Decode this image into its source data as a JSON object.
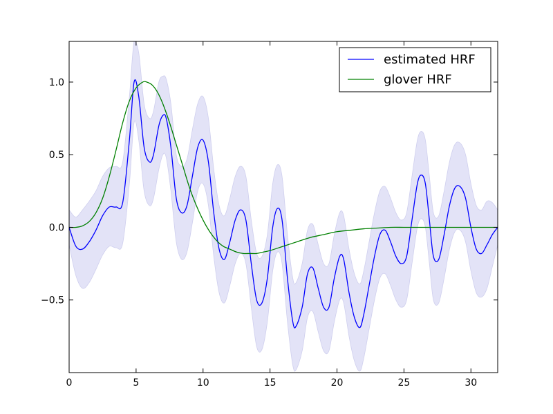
{
  "chart_data": {
    "type": "line",
    "xlim": [
      0,
      32
    ],
    "ylim": [
      -1.0,
      1.28
    ],
    "xticks": [
      0,
      5,
      10,
      15,
      20,
      25,
      30
    ],
    "xtick_labels": [
      "0",
      "5",
      "10",
      "15",
      "20",
      "25",
      "30"
    ],
    "yticks": [
      -0.5,
      0.0,
      0.5,
      1.0
    ],
    "ytick_labels": [
      "−0.5",
      "0.0",
      "0.5",
      "1.0"
    ],
    "grid": false,
    "legend_position": "top-right",
    "series": [
      {
        "name": "estimated HRF",
        "color": "#0000ff",
        "band_color": "#e3e3f7",
        "x": [
          0,
          0.5,
          1.0,
          1.5,
          2.0,
          2.5,
          3.0,
          3.5,
          4.0,
          4.5,
          4.85,
          5.2,
          5.6,
          6.0,
          6.3,
          6.7,
          7.0,
          7.25,
          7.6,
          8.0,
          8.4,
          8.8,
          9.2,
          9.6,
          10.0,
          10.4,
          10.8,
          11.2,
          11.6,
          12.0,
          12.4,
          12.8,
          13.2,
          13.6,
          14.0,
          14.4,
          14.8,
          15.2,
          15.55,
          15.9,
          16.3,
          16.7,
          16.95,
          17.4,
          17.8,
          18.2,
          18.6,
          19.0,
          19.4,
          19.8,
          20.2,
          20.5,
          20.9,
          21.3,
          21.7,
          22.0,
          22.4,
          22.8,
          23.2,
          23.6,
          24.0,
          24.4,
          24.8,
          25.2,
          25.6,
          26.0,
          26.3,
          26.6,
          26.9,
          27.2,
          27.6,
          28.0,
          28.4,
          28.8,
          29.2,
          29.6,
          30.0,
          30.4,
          30.8,
          31.2,
          31.6,
          32.0
        ],
        "y": [
          0.0,
          -0.13,
          -0.15,
          -0.1,
          -0.02,
          0.08,
          0.14,
          0.14,
          0.17,
          0.6,
          1.0,
          0.9,
          0.55,
          0.45,
          0.5,
          0.7,
          0.77,
          0.75,
          0.55,
          0.2,
          0.1,
          0.15,
          0.35,
          0.55,
          0.6,
          0.45,
          0.1,
          -0.15,
          -0.22,
          -0.1,
          0.05,
          0.12,
          0.05,
          -0.25,
          -0.5,
          -0.52,
          -0.35,
          0.0,
          0.13,
          0.05,
          -0.35,
          -0.65,
          -0.68,
          -0.55,
          -0.32,
          -0.28,
          -0.42,
          -0.55,
          -0.55,
          -0.35,
          -0.2,
          -0.22,
          -0.45,
          -0.62,
          -0.69,
          -0.6,
          -0.4,
          -0.2,
          -0.05,
          -0.02,
          -0.1,
          -0.2,
          -0.25,
          -0.2,
          0.05,
          0.3,
          0.36,
          0.3,
          0.05,
          -0.2,
          -0.22,
          -0.05,
          0.15,
          0.27,
          0.28,
          0.2,
          0.0,
          -0.15,
          -0.18,
          -0.12,
          -0.05,
          0.0
        ],
        "band_halfwidth": [
          0.12,
          0.2,
          0.27,
          0.28,
          0.27,
          0.27,
          0.27,
          0.28,
          0.28,
          0.3,
          0.28,
          0.3,
          0.3,
          0.3,
          0.3,
          0.3,
          0.27,
          0.27,
          0.3,
          0.3,
          0.32,
          0.32,
          0.32,
          0.3,
          0.3,
          0.3,
          0.3,
          0.3,
          0.3,
          0.3,
          0.3,
          0.3,
          0.3,
          0.3,
          0.32,
          0.32,
          0.3,
          0.3,
          0.3,
          0.3,
          0.3,
          0.3,
          0.3,
          0.3,
          0.3,
          0.3,
          0.3,
          0.3,
          0.3,
          0.3,
          0.3,
          0.3,
          0.3,
          0.3,
          0.3,
          0.3,
          0.3,
          0.3,
          0.3,
          0.3,
          0.3,
          0.3,
          0.3,
          0.3,
          0.3,
          0.3,
          0.3,
          0.3,
          0.3,
          0.3,
          0.3,
          0.3,
          0.3,
          0.3,
          0.3,
          0.3,
          0.3,
          0.3,
          0.3,
          0.3,
          0.22,
          0.12
        ]
      },
      {
        "name": "glover HRF",
        "color": "#008000",
        "x": [
          0,
          0.5,
          1.0,
          1.5,
          2.0,
          2.5,
          3.0,
          3.5,
          4.0,
          4.5,
          5.0,
          5.5,
          5.8,
          6.2,
          6.6,
          7.0,
          7.5,
          8.0,
          8.5,
          9.0,
          9.5,
          10.0,
          10.5,
          11.0,
          11.5,
          12.0,
          12.5,
          13.0,
          13.5,
          14.0,
          14.5,
          15.0,
          16.0,
          17.0,
          18.0,
          19.0,
          20.0,
          21.0,
          22.0,
          23.0,
          24.0,
          25.0,
          26.0,
          27.0,
          28.0,
          29.0,
          30.0,
          31.0,
          32.0
        ],
        "y": [
          0.0,
          0.0,
          0.01,
          0.04,
          0.1,
          0.2,
          0.35,
          0.53,
          0.72,
          0.87,
          0.96,
          1.0,
          1.0,
          0.98,
          0.93,
          0.85,
          0.72,
          0.57,
          0.42,
          0.27,
          0.15,
          0.05,
          -0.03,
          -0.09,
          -0.13,
          -0.15,
          -0.17,
          -0.18,
          -0.18,
          -0.18,
          -0.17,
          -0.16,
          -0.13,
          -0.1,
          -0.07,
          -0.05,
          -0.03,
          -0.02,
          -0.01,
          -0.005,
          0.0,
          0.0,
          0.0,
          0.0,
          0.0,
          0.0,
          0.0,
          0.0,
          0.0
        ]
      }
    ]
  }
}
